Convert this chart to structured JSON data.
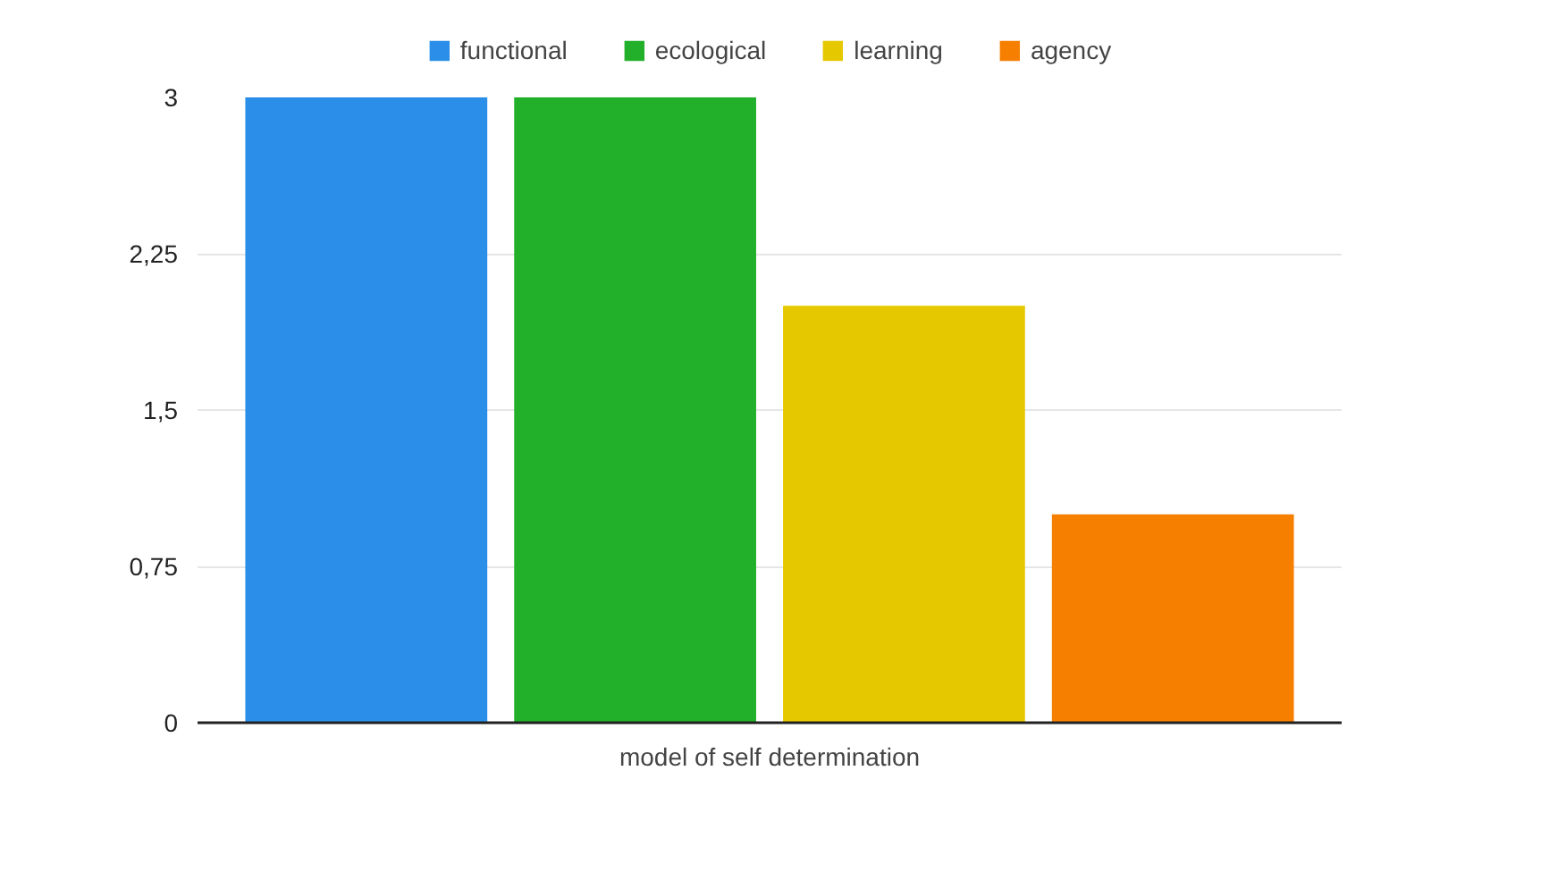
{
  "chart_data": {
    "type": "bar",
    "xlabel": "model of self determination",
    "categories": [
      null
    ],
    "series": [
      {
        "name": "functional",
        "color": "#2b8ee8",
        "values": [
          3
        ]
      },
      {
        "name": "ecological",
        "color": "#22b02a",
        "values": [
          3
        ]
      },
      {
        "name": "learning",
        "color": "#e6c800",
        "values": [
          2
        ]
      },
      {
        "name": "agency",
        "color": "#f77f00",
        "values": [
          1
        ]
      }
    ],
    "ylim": [
      0,
      3
    ],
    "yticks": [
      {
        "value": 0,
        "label": "0"
      },
      {
        "value": 0.75,
        "label": "0,75"
      },
      {
        "value": 1.5,
        "label": "1,5"
      },
      {
        "value": 2.25,
        "label": "2,25"
      },
      {
        "value": 3,
        "label": "3"
      }
    ],
    "grid": "y",
    "legend": "top"
  }
}
